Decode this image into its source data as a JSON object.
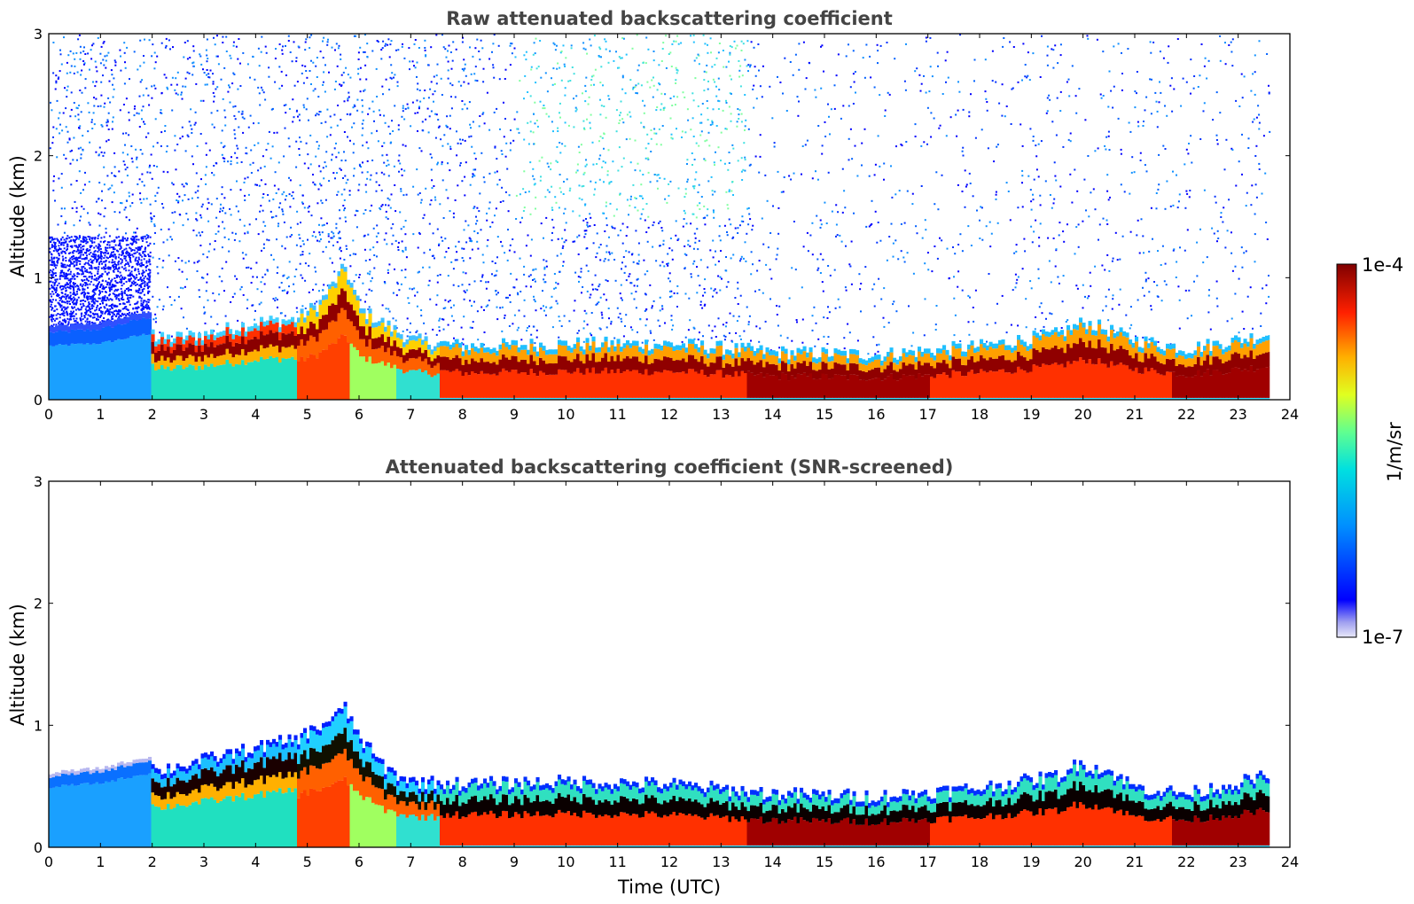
{
  "chart_data": [
    {
      "type": "heatmap",
      "title": "Raw attenuated backscattering coefficient",
      "xlabel": "",
      "ylabel": "Altitude (km)",
      "xlim": [
        0,
        24
      ],
      "ylim": [
        0,
        3
      ],
      "xticks": [
        "0",
        "1",
        "2",
        "3",
        "4",
        "5",
        "6",
        "7",
        "8",
        "9",
        "10",
        "11",
        "12",
        "13",
        "14",
        "15",
        "16",
        "17",
        "18",
        "19",
        "20",
        "21",
        "22",
        "23",
        "24"
      ],
      "yticks": [
        "0",
        "1",
        "2",
        "3"
      ],
      "data_end_time": 23.6,
      "layer_top_km": [
        [
          0,
          0.55
        ],
        [
          1,
          0.58
        ],
        [
          1.95,
          0.68
        ],
        [
          2.0,
          0.45
        ],
        [
          3,
          0.5
        ],
        [
          4,
          0.6
        ],
        [
          4.75,
          0.62
        ],
        [
          5.2,
          0.75
        ],
        [
          5.7,
          1.05
        ],
        [
          6,
          0.7
        ],
        [
          7,
          0.45
        ],
        [
          8,
          0.4
        ],
        [
          10,
          0.42
        ],
        [
          12,
          0.42
        ],
        [
          14,
          0.35
        ],
        [
          16,
          0.33
        ],
        [
          18,
          0.4
        ],
        [
          19.5,
          0.5
        ],
        [
          20,
          0.6
        ],
        [
          21,
          0.45
        ],
        [
          22,
          0.38
        ],
        [
          23.6,
          0.5
        ]
      ],
      "background_noise_top_km": 3,
      "notes_shown": "noisy speckle above boundary layer; clear region after 13.7 h above 1 km"
    },
    {
      "type": "heatmap",
      "title": "Attenuated backscattering coefficient (SNR-screened)",
      "xlabel": "Time (UTC)",
      "ylabel": "Altitude (km)",
      "xlim": [
        0,
        24
      ],
      "ylim": [
        0,
        3
      ],
      "xticks": [
        "0",
        "1",
        "2",
        "3",
        "4",
        "5",
        "6",
        "7",
        "8",
        "9",
        "10",
        "11",
        "12",
        "13",
        "14",
        "15",
        "16",
        "17",
        "18",
        "19",
        "20",
        "21",
        "22",
        "23",
        "24"
      ],
      "yticks": [
        "0",
        "1",
        "2",
        "3"
      ],
      "data_end_time": 23.6,
      "layer_top_km": [
        [
          0,
          0.58
        ],
        [
          1,
          0.62
        ],
        [
          1.95,
          0.72
        ],
        [
          2.0,
          0.58
        ],
        [
          3,
          0.68
        ],
        [
          4,
          0.78
        ],
        [
          4.75,
          0.85
        ],
        [
          5.2,
          0.95
        ],
        [
          5.7,
          1.1
        ],
        [
          6,
          0.85
        ],
        [
          6.5,
          0.6
        ],
        [
          7,
          0.5
        ],
        [
          8,
          0.48
        ],
        [
          10,
          0.5
        ],
        [
          12,
          0.48
        ],
        [
          14,
          0.4
        ],
        [
          16,
          0.38
        ],
        [
          18,
          0.45
        ],
        [
          19.5,
          0.55
        ],
        [
          19.9,
          0.65
        ],
        [
          20.5,
          0.58
        ],
        [
          21,
          0.45
        ],
        [
          22,
          0.4
        ],
        [
          23.6,
          0.55
        ]
      ]
    }
  ],
  "colorbar": {
    "label": "1/m/sr",
    "max_label": "1e-4",
    "min_label": "1e-7",
    "scale": "log",
    "range": [
      1e-07,
      0.0001
    ],
    "colormap": "jet"
  }
}
